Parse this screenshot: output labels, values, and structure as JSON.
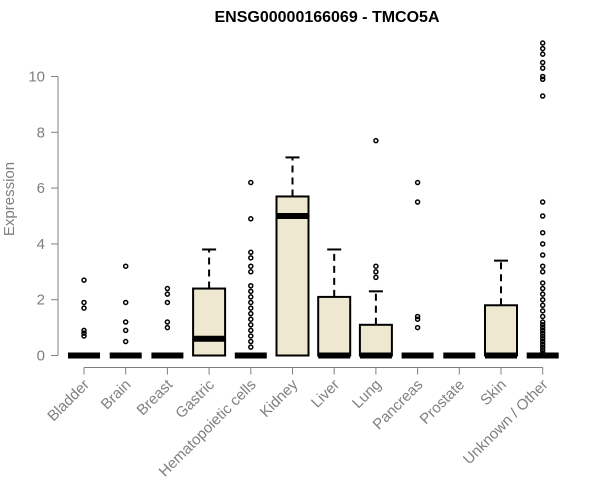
{
  "chart_data": {
    "type": "boxplot",
    "title": "ENSG00000166069 - TMCO5A",
    "xlabel": "",
    "ylabel": "Expression",
    "ylim": [
      0,
      11.2
    ],
    "yticks": [
      0,
      2,
      4,
      6,
      8,
      10
    ],
    "box_color": "#EEE8D0",
    "categories": [
      "Bladder",
      "Brain",
      "Breast",
      "Gastric",
      "Hematopoietic cells",
      "Kidney",
      "Liver",
      "Lung",
      "Pancreas",
      "Prostate",
      "Skin",
      "Unknown / Other"
    ],
    "boxes": [
      {
        "category": "Bladder",
        "q1": 0,
        "median": 0,
        "q3": 0,
        "whisker_low": 0,
        "whisker_high": 0,
        "outliers": [
          0.7,
          0.8,
          0.9,
          1.7,
          1.9,
          2.7
        ]
      },
      {
        "category": "Brain",
        "q1": 0,
        "median": 0,
        "q3": 0,
        "whisker_low": 0,
        "whisker_high": 0,
        "outliers": [
          0.5,
          0.9,
          1.2,
          1.9,
          3.2
        ]
      },
      {
        "category": "Breast",
        "q1": 0,
        "median": 0,
        "q3": 0,
        "whisker_low": 0,
        "whisker_high": 0,
        "outliers": [
          1.0,
          1.2,
          1.9,
          2.2,
          2.4
        ]
      },
      {
        "category": "Gastric",
        "q1": 0,
        "median": 0.6,
        "q3": 2.4,
        "whisker_low": 0,
        "whisker_high": 3.8,
        "outliers": []
      },
      {
        "category": "Hematopoietic cells",
        "q1": 0,
        "median": 0,
        "q3": 0,
        "whisker_low": 0,
        "whisker_high": 0,
        "outliers": [
          0.3,
          0.5,
          0.7,
          0.9,
          1.1,
          1.3,
          1.5,
          1.7,
          1.9,
          2.1,
          2.3,
          2.5,
          3.0,
          3.2,
          3.5,
          3.7,
          4.9,
          6.2
        ]
      },
      {
        "category": "Kidney",
        "q1": 0,
        "median": 5.0,
        "q3": 5.7,
        "whisker_low": 0,
        "whisker_high": 7.1,
        "outliers": []
      },
      {
        "category": "Liver",
        "q1": 0,
        "median": 0,
        "q3": 2.1,
        "whisker_low": 0,
        "whisker_high": 3.8,
        "outliers": []
      },
      {
        "category": "Lung",
        "q1": 0,
        "median": 0,
        "q3": 1.1,
        "whisker_low": 0,
        "whisker_high": 2.3,
        "outliers": [
          2.8,
          3.0,
          3.2,
          7.7
        ]
      },
      {
        "category": "Pancreas",
        "q1": 0,
        "median": 0,
        "q3": 0,
        "whisker_low": 0,
        "whisker_high": 0,
        "outliers": [
          1.0,
          1.3,
          1.4,
          5.5,
          6.2
        ]
      },
      {
        "category": "Prostate",
        "q1": 0,
        "median": 0,
        "q3": 0,
        "whisker_low": 0,
        "whisker_high": 0,
        "outliers": []
      },
      {
        "category": "Skin",
        "q1": 0,
        "median": 0,
        "q3": 1.8,
        "whisker_low": 0,
        "whisker_high": 3.4,
        "outliers": []
      },
      {
        "category": "Unknown / Other",
        "q1": 0,
        "median": 0,
        "q3": 0,
        "whisker_low": 0,
        "whisker_high": 0,
        "outliers": [
          0.1,
          0.2,
          0.3,
          0.4,
          0.5,
          0.6,
          0.7,
          0.8,
          0.9,
          1.0,
          1.1,
          1.2,
          1.4,
          1.6,
          1.8,
          2.0,
          2.2,
          2.4,
          2.6,
          3.0,
          3.2,
          3.6,
          4.0,
          4.4,
          5.0,
          5.5,
          9.3,
          9.9,
          10.0,
          10.3,
          10.5,
          10.8,
          11.0,
          11.2
        ]
      }
    ]
  }
}
